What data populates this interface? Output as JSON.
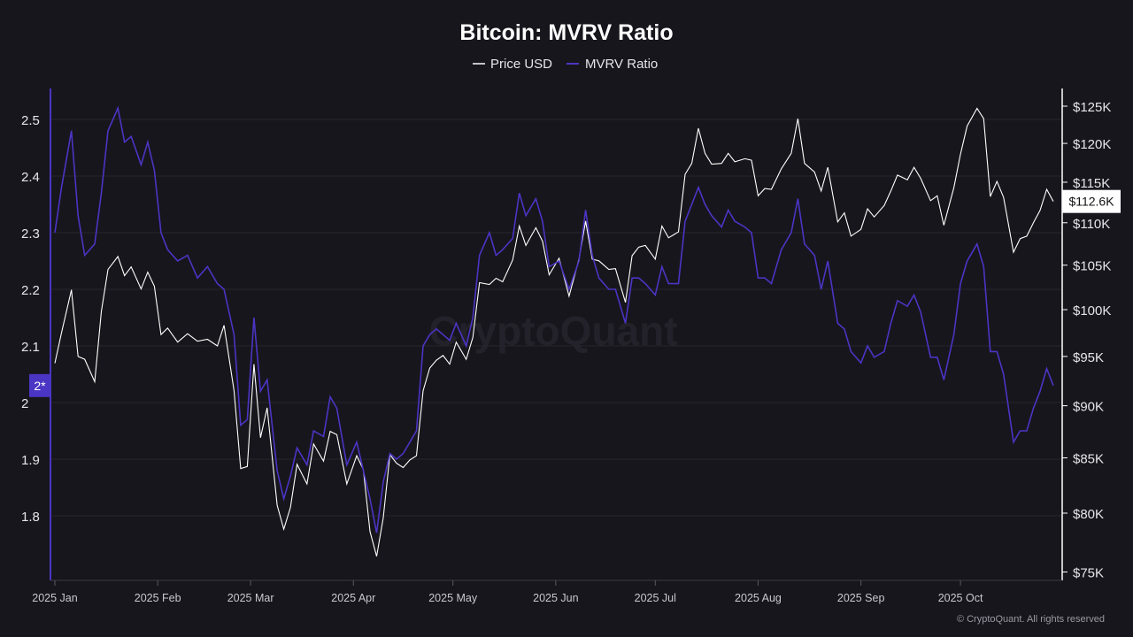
{
  "chart_data": {
    "type": "line",
    "title": "Bitcoin: MVRV Ratio",
    "legend_position": "top-center",
    "grid": true,
    "watermark": "CryptoQuant",
    "copyright": "© CryptoQuant. All rights reserved",
    "x_ticks": [
      "2025 Jan",
      "2025 Feb",
      "2025 Mar",
      "2025 Apr",
      "2025 May",
      "2025 Jun",
      "2025 Jul",
      "2025 Aug",
      "2025 Sep",
      "2025 Oct"
    ],
    "left_axis": {
      "ticks": [
        1.8,
        1.9,
        2,
        2.1,
        2.2,
        2.3,
        2.4,
        2.5
      ],
      "tick_labels": [
        "1.8",
        "1.9",
        "2",
        "2.1",
        "2.2",
        "2.3",
        "2.4",
        "2.5"
      ],
      "marker_label": "2*",
      "marker_value": 2.03,
      "color": "#4a35c4"
    },
    "right_axis": {
      "scale": "log",
      "ticks": [
        75000,
        80000,
        85000,
        90000,
        95000,
        100000,
        105000,
        110000,
        115000,
        120000,
        125000
      ],
      "tick_labels": [
        "$75K",
        "$80K",
        "$85K",
        "$90K",
        "$95K",
        "$100K",
        "$105K",
        "$110K",
        "$115K",
        "$120K",
        "$125K"
      ],
      "current_label": "$112.6K",
      "current_value": 112600
    },
    "series": [
      {
        "name": "Price USD",
        "axis": "right",
        "color": "#ffffff",
        "points": [
          [
            "2025-01-01",
            94300
          ],
          [
            "2025-01-03",
            97500
          ],
          [
            "2025-01-06",
            102200
          ],
          [
            "2025-01-08",
            95000
          ],
          [
            "2025-01-10",
            94700
          ],
          [
            "2025-01-13",
            92400
          ],
          [
            "2025-01-15",
            99800
          ],
          [
            "2025-01-17",
            104500
          ],
          [
            "2025-01-20",
            106000
          ],
          [
            "2025-01-22",
            103800
          ],
          [
            "2025-01-24",
            104800
          ],
          [
            "2025-01-27",
            102300
          ],
          [
            "2025-01-29",
            104200
          ],
          [
            "2025-01-31",
            102600
          ],
          [
            "2025-02-02",
            97300
          ],
          [
            "2025-02-04",
            98000
          ],
          [
            "2025-02-07",
            96500
          ],
          [
            "2025-02-10",
            97400
          ],
          [
            "2025-02-13",
            96600
          ],
          [
            "2025-02-16",
            96800
          ],
          [
            "2025-02-19",
            96100
          ],
          [
            "2025-02-21",
            98300
          ],
          [
            "2025-02-24",
            91500
          ],
          [
            "2025-02-26",
            84000
          ],
          [
            "2025-02-28",
            84200
          ],
          [
            "2025-03-02",
            94200
          ],
          [
            "2025-03-04",
            86900
          ],
          [
            "2025-03-06",
            89800
          ],
          [
            "2025-03-09",
            80700
          ],
          [
            "2025-03-11",
            78600
          ],
          [
            "2025-03-13",
            80500
          ],
          [
            "2025-03-15",
            84400
          ],
          [
            "2025-03-18",
            82600
          ],
          [
            "2025-03-20",
            86300
          ],
          [
            "2025-03-23",
            84700
          ],
          [
            "2025-03-25",
            87500
          ],
          [
            "2025-03-27",
            87200
          ],
          [
            "2025-03-30",
            82600
          ],
          [
            "2025-04-02",
            85200
          ],
          [
            "2025-04-04",
            83900
          ],
          [
            "2025-04-06",
            78400
          ],
          [
            "2025-04-08",
            76300
          ],
          [
            "2025-04-10",
            79600
          ],
          [
            "2025-04-12",
            85300
          ],
          [
            "2025-04-14",
            84500
          ],
          [
            "2025-04-16",
            84100
          ],
          [
            "2025-04-18",
            84800
          ],
          [
            "2025-04-20",
            85200
          ],
          [
            "2025-04-22",
            91500
          ],
          [
            "2025-04-24",
            93800
          ],
          [
            "2025-04-26",
            94600
          ],
          [
            "2025-04-28",
            95100
          ],
          [
            "2025-04-30",
            94200
          ],
          [
            "2025-05-02",
            96500
          ],
          [
            "2025-05-05",
            94700
          ],
          [
            "2025-05-07",
            97000
          ],
          [
            "2025-05-09",
            103000
          ],
          [
            "2025-05-12",
            102800
          ],
          [
            "2025-05-14",
            103500
          ],
          [
            "2025-05-16",
            103100
          ],
          [
            "2025-05-19",
            105600
          ],
          [
            "2025-05-21",
            109600
          ],
          [
            "2025-05-23",
            107300
          ],
          [
            "2025-05-26",
            109400
          ],
          [
            "2025-05-28",
            107800
          ],
          [
            "2025-05-30",
            103900
          ],
          [
            "2025-06-02",
            105800
          ],
          [
            "2025-06-05",
            101500
          ],
          [
            "2025-06-08",
            105700
          ],
          [
            "2025-06-10",
            110200
          ],
          [
            "2025-06-12",
            105700
          ],
          [
            "2025-06-14",
            105500
          ],
          [
            "2025-06-17",
            104500
          ],
          [
            "2025-06-19",
            104600
          ],
          [
            "2025-06-22",
            100800
          ],
          [
            "2025-06-24",
            106100
          ],
          [
            "2025-06-26",
            107100
          ],
          [
            "2025-06-28",
            107300
          ],
          [
            "2025-07-01",
            105700
          ],
          [
            "2025-07-03",
            109600
          ],
          [
            "2025-07-05",
            108200
          ],
          [
            "2025-07-08",
            108900
          ],
          [
            "2025-07-10",
            116000
          ],
          [
            "2025-07-12",
            117400
          ],
          [
            "2025-07-14",
            122000
          ],
          [
            "2025-07-16",
            118700
          ],
          [
            "2025-07-18",
            117300
          ],
          [
            "2025-07-21",
            117400
          ],
          [
            "2025-07-23",
            118700
          ],
          [
            "2025-07-25",
            117600
          ],
          [
            "2025-07-28",
            118000
          ],
          [
            "2025-07-30",
            117800
          ],
          [
            "2025-08-01",
            113300
          ],
          [
            "2025-08-03",
            114200
          ],
          [
            "2025-08-05",
            114100
          ],
          [
            "2025-08-08",
            116700
          ],
          [
            "2025-08-11",
            118700
          ],
          [
            "2025-08-13",
            123300
          ],
          [
            "2025-08-15",
            117400
          ],
          [
            "2025-08-18",
            116300
          ],
          [
            "2025-08-20",
            113900
          ],
          [
            "2025-08-22",
            116900
          ],
          [
            "2025-08-25",
            110100
          ],
          [
            "2025-08-27",
            111200
          ],
          [
            "2025-08-29",
            108400
          ],
          [
            "2025-09-01",
            109200
          ],
          [
            "2025-09-03",
            111700
          ],
          [
            "2025-09-05",
            110700
          ],
          [
            "2025-09-08",
            112100
          ],
          [
            "2025-09-10",
            113900
          ],
          [
            "2025-09-12",
            115900
          ],
          [
            "2025-09-15",
            115300
          ],
          [
            "2025-09-17",
            116900
          ],
          [
            "2025-09-19",
            115500
          ],
          [
            "2025-09-22",
            112700
          ],
          [
            "2025-09-24",
            113300
          ],
          [
            "2025-09-26",
            109700
          ],
          [
            "2025-09-29",
            114300
          ],
          [
            "2025-10-01",
            118600
          ],
          [
            "2025-10-03",
            122300
          ],
          [
            "2025-10-06",
            124700
          ],
          [
            "2025-10-08",
            123300
          ],
          [
            "2025-10-10",
            113200
          ],
          [
            "2025-10-12",
            115100
          ],
          [
            "2025-10-14",
            113100
          ],
          [
            "2025-10-17",
            106500
          ],
          [
            "2025-10-19",
            108100
          ],
          [
            "2025-10-21",
            108400
          ],
          [
            "2025-10-23",
            110000
          ],
          [
            "2025-10-25",
            111500
          ],
          [
            "2025-10-27",
            114100
          ],
          [
            "2025-10-29",
            112600
          ]
        ]
      },
      {
        "name": "MVRV Ratio",
        "axis": "left",
        "color": "#4a35c4",
        "points": [
          [
            "2025-01-01",
            2.3
          ],
          [
            "2025-01-03",
            2.38
          ],
          [
            "2025-01-06",
            2.48
          ],
          [
            "2025-01-08",
            2.33
          ],
          [
            "2025-01-10",
            2.26
          ],
          [
            "2025-01-13",
            2.28
          ],
          [
            "2025-01-15",
            2.37
          ],
          [
            "2025-01-17",
            2.48
          ],
          [
            "2025-01-20",
            2.52
          ],
          [
            "2025-01-22",
            2.46
          ],
          [
            "2025-01-24",
            2.47
          ],
          [
            "2025-01-27",
            2.42
          ],
          [
            "2025-01-29",
            2.46
          ],
          [
            "2025-01-31",
            2.41
          ],
          [
            "2025-02-02",
            2.3
          ],
          [
            "2025-02-04",
            2.27
          ],
          [
            "2025-02-07",
            2.25
          ],
          [
            "2025-02-10",
            2.26
          ],
          [
            "2025-02-13",
            2.22
          ],
          [
            "2025-02-16",
            2.24
          ],
          [
            "2025-02-19",
            2.21
          ],
          [
            "2025-02-21",
            2.2
          ],
          [
            "2025-02-24",
            2.12
          ],
          [
            "2025-02-26",
            1.96
          ],
          [
            "2025-02-28",
            1.97
          ],
          [
            "2025-03-02",
            2.15
          ],
          [
            "2025-03-04",
            2.02
          ],
          [
            "2025-03-06",
            2.04
          ],
          [
            "2025-03-09",
            1.88
          ],
          [
            "2025-03-11",
            1.83
          ],
          [
            "2025-03-13",
            1.87
          ],
          [
            "2025-03-15",
            1.92
          ],
          [
            "2025-03-18",
            1.89
          ],
          [
            "2025-03-20",
            1.95
          ],
          [
            "2025-03-23",
            1.94
          ],
          [
            "2025-03-25",
            2.01
          ],
          [
            "2025-03-27",
            1.99
          ],
          [
            "2025-03-30",
            1.89
          ],
          [
            "2025-04-02",
            1.93
          ],
          [
            "2025-04-04",
            1.88
          ],
          [
            "2025-04-06",
            1.83
          ],
          [
            "2025-04-08",
            1.77
          ],
          [
            "2025-04-10",
            1.86
          ],
          [
            "2025-04-12",
            1.91
          ],
          [
            "2025-04-14",
            1.9
          ],
          [
            "2025-04-16",
            1.91
          ],
          [
            "2025-04-18",
            1.93
          ],
          [
            "2025-04-20",
            1.95
          ],
          [
            "2025-04-22",
            2.1
          ],
          [
            "2025-04-24",
            2.12
          ],
          [
            "2025-04-26",
            2.13
          ],
          [
            "2025-04-28",
            2.12
          ],
          [
            "2025-04-30",
            2.11
          ],
          [
            "2025-05-02",
            2.14
          ],
          [
            "2025-05-05",
            2.1
          ],
          [
            "2025-05-07",
            2.15
          ],
          [
            "2025-05-09",
            2.26
          ],
          [
            "2025-05-12",
            2.3
          ],
          [
            "2025-05-14",
            2.26
          ],
          [
            "2025-05-16",
            2.27
          ],
          [
            "2025-05-19",
            2.29
          ],
          [
            "2025-05-21",
            2.37
          ],
          [
            "2025-05-23",
            2.33
          ],
          [
            "2025-05-26",
            2.36
          ],
          [
            "2025-05-28",
            2.32
          ],
          [
            "2025-05-30",
            2.24
          ],
          [
            "2025-06-02",
            2.25
          ],
          [
            "2025-06-05",
            2.2
          ],
          [
            "2025-06-08",
            2.25
          ],
          [
            "2025-06-10",
            2.34
          ],
          [
            "2025-06-12",
            2.26
          ],
          [
            "2025-06-14",
            2.22
          ],
          [
            "2025-06-17",
            2.2
          ],
          [
            "2025-06-19",
            2.2
          ],
          [
            "2025-06-22",
            2.14
          ],
          [
            "2025-06-24",
            2.22
          ],
          [
            "2025-06-26",
            2.22
          ],
          [
            "2025-06-28",
            2.21
          ],
          [
            "2025-07-01",
            2.19
          ],
          [
            "2025-07-03",
            2.24
          ],
          [
            "2025-07-05",
            2.21
          ],
          [
            "2025-07-08",
            2.21
          ],
          [
            "2025-07-10",
            2.32
          ],
          [
            "2025-07-12",
            2.35
          ],
          [
            "2025-07-14",
            2.38
          ],
          [
            "2025-07-16",
            2.35
          ],
          [
            "2025-07-18",
            2.33
          ],
          [
            "2025-07-21",
            2.31
          ],
          [
            "2025-07-23",
            2.34
          ],
          [
            "2025-07-25",
            2.32
          ],
          [
            "2025-07-28",
            2.31
          ],
          [
            "2025-07-30",
            2.3
          ],
          [
            "2025-08-01",
            2.22
          ],
          [
            "2025-08-03",
            2.22
          ],
          [
            "2025-08-05",
            2.21
          ],
          [
            "2025-08-08",
            2.27
          ],
          [
            "2025-08-11",
            2.3
          ],
          [
            "2025-08-13",
            2.36
          ],
          [
            "2025-08-15",
            2.28
          ],
          [
            "2025-08-18",
            2.26
          ],
          [
            "2025-08-20",
            2.2
          ],
          [
            "2025-08-22",
            2.25
          ],
          [
            "2025-08-25",
            2.14
          ],
          [
            "2025-08-27",
            2.13
          ],
          [
            "2025-08-29",
            2.09
          ],
          [
            "2025-09-01",
            2.07
          ],
          [
            "2025-09-03",
            2.1
          ],
          [
            "2025-09-05",
            2.08
          ],
          [
            "2025-09-08",
            2.09
          ],
          [
            "2025-09-10",
            2.14
          ],
          [
            "2025-09-12",
            2.18
          ],
          [
            "2025-09-15",
            2.17
          ],
          [
            "2025-09-17",
            2.19
          ],
          [
            "2025-09-19",
            2.16
          ],
          [
            "2025-09-22",
            2.08
          ],
          [
            "2025-09-24",
            2.08
          ],
          [
            "2025-09-26",
            2.04
          ],
          [
            "2025-09-29",
            2.12
          ],
          [
            "2025-10-01",
            2.21
          ],
          [
            "2025-10-03",
            2.25
          ],
          [
            "2025-10-06",
            2.28
          ],
          [
            "2025-10-08",
            2.24
          ],
          [
            "2025-10-10",
            2.09
          ],
          [
            "2025-10-12",
            2.09
          ],
          [
            "2025-10-14",
            2.05
          ],
          [
            "2025-10-17",
            1.93
          ],
          [
            "2025-10-19",
            1.95
          ],
          [
            "2025-10-21",
            1.95
          ],
          [
            "2025-10-23",
            1.99
          ],
          [
            "2025-10-25",
            2.02
          ],
          [
            "2025-10-27",
            2.06
          ],
          [
            "2025-10-29",
            2.03
          ]
        ]
      }
    ]
  }
}
